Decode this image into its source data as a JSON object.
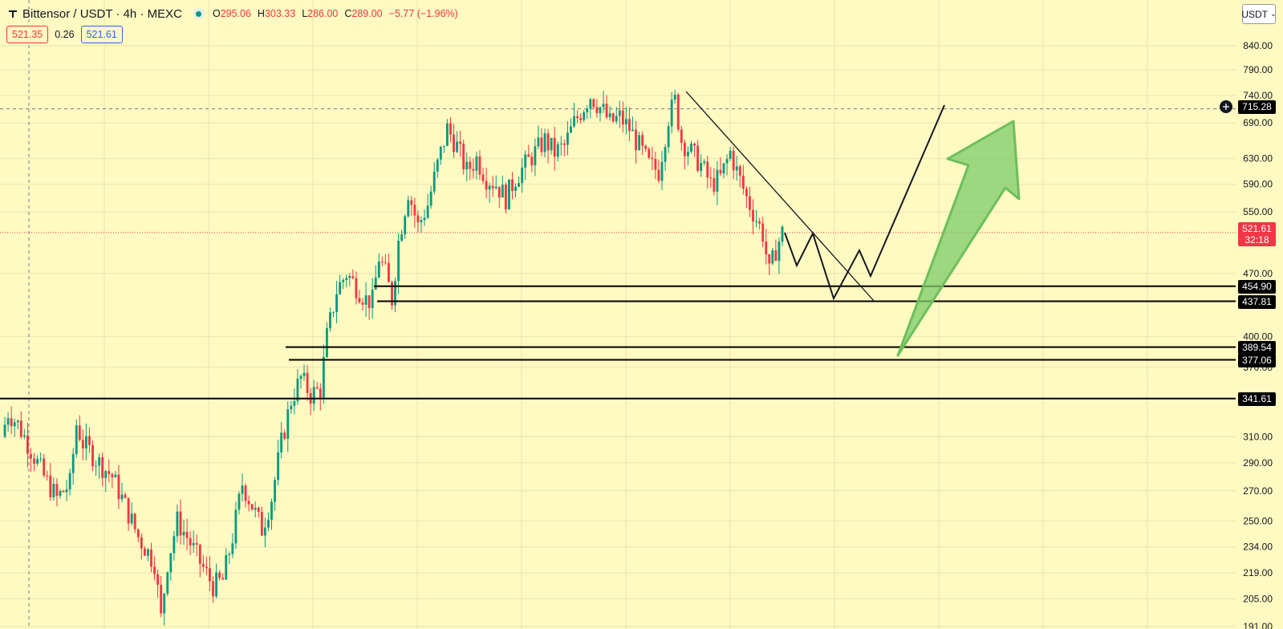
{
  "header": {
    "title": "Bittensor / USDT · 4h · MEXC",
    "ohlc": {
      "o_label": "O",
      "o_value": "295.06",
      "h_label": "H",
      "h_value": "303.33",
      "l_label": "L",
      "l_value": "286.00",
      "c_label": "C",
      "c_value": "289.00",
      "change": "−5.77 (−1.96%)"
    }
  },
  "quote": {
    "bid": "521.35",
    "spread": "0.26",
    "ask": "521.61"
  },
  "currency": {
    "label": "USDT"
  },
  "colors": {
    "background": "#fff9c2",
    "up": "#089981",
    "down": "#f23645",
    "arrow": "#7ccb6a"
  },
  "price_tags": {
    "crosshair": "715.28",
    "last": "521.61",
    "countdown": "32:18",
    "levels": [
      "454.90",
      "437.81",
      "389.54",
      "377.06",
      "341.61"
    ]
  },
  "chart_data": {
    "type": "candlestick",
    "symbol": "Bittensor / USDT",
    "timeframe": "4h",
    "exchange": "MEXC",
    "y_scale": "log",
    "ylim": [
      191,
      880
    ],
    "y_ticks": [
      "840.00",
      "790.00",
      "740.00",
      "690.00",
      "630.00",
      "590.00",
      "550.00",
      "470.00",
      "400.00",
      "370.00",
      "310.00",
      "290.00",
      "270.00",
      "250.00",
      "234.00",
      "219.00",
      "205.00",
      "191.00"
    ],
    "last_price": 521.61,
    "horizontal_levels": [
      454.9,
      437.81,
      389.54,
      377.06,
      341.61
    ],
    "crosshair_price": 715.28,
    "price_path_approx": [
      [
        0,
        310
      ],
      [
        2,
        330
      ],
      [
        5,
        320
      ],
      [
        9,
        300
      ],
      [
        13,
        280
      ],
      [
        17,
        265
      ],
      [
        21,
        275
      ],
      [
        23,
        320
      ],
      [
        25,
        305
      ],
      [
        30,
        290
      ],
      [
        34,
        280
      ],
      [
        38,
        260
      ],
      [
        42,
        240
      ],
      [
        47,
        225
      ],
      [
        49,
        195
      ],
      [
        51,
        225
      ],
      [
        54,
        250
      ],
      [
        57,
        240
      ],
      [
        61,
        225
      ],
      [
        65,
        212
      ],
      [
        68,
        215
      ],
      [
        71,
        240
      ],
      [
        74,
        275
      ],
      [
        77,
        260
      ],
      [
        80,
        245
      ],
      [
        83,
        265
      ],
      [
        86,
        305
      ],
      [
        89,
        340
      ],
      [
        92,
        360
      ],
      [
        95,
        345
      ],
      [
        98,
        350
      ],
      [
        100,
        400
      ],
      [
        103,
        450
      ],
      [
        106,
        470
      ],
      [
        109,
        455
      ],
      [
        112,
        440
      ],
      [
        114,
        438
      ],
      [
        116,
        490
      ],
      [
        118,
        470
      ],
      [
        120,
        440
      ],
      [
        122,
        510
      ],
      [
        125,
        580
      ],
      [
        128,
        530
      ],
      [
        131,
        560
      ],
      [
        134,
        620
      ],
      [
        137,
        680
      ],
      [
        140,
        650
      ],
      [
        143,
        610
      ],
      [
        146,
        630
      ],
      [
        149,
        600
      ],
      [
        152,
        590
      ],
      [
        155,
        570
      ],
      [
        158,
        600
      ],
      [
        161,
        620
      ],
      [
        164,
        640
      ],
      [
        167,
        660
      ],
      [
        170,
        640
      ],
      [
        173,
        650
      ],
      [
        176,
        690
      ],
      [
        179,
        720
      ],
      [
        181,
        740
      ],
      [
        183,
        725
      ],
      [
        185,
        710
      ],
      [
        187,
        690
      ],
      [
        190,
        700
      ],
      [
        193,
        680
      ],
      [
        196,
        650
      ],
      [
        199,
        620
      ],
      [
        202,
        610
      ],
      [
        205,
        700
      ],
      [
        207,
        730
      ],
      [
        209,
        660
      ],
      [
        212,
        640
      ],
      [
        215,
        620
      ],
      [
        218,
        590
      ],
      [
        221,
        600
      ],
      [
        224,
        640
      ],
      [
        226,
        610
      ],
      [
        229,
        570
      ],
      [
        232,
        540
      ],
      [
        234,
        520
      ],
      [
        236,
        470
      ],
      [
        238,
        500
      ],
      [
        240,
        521.61
      ]
    ]
  }
}
